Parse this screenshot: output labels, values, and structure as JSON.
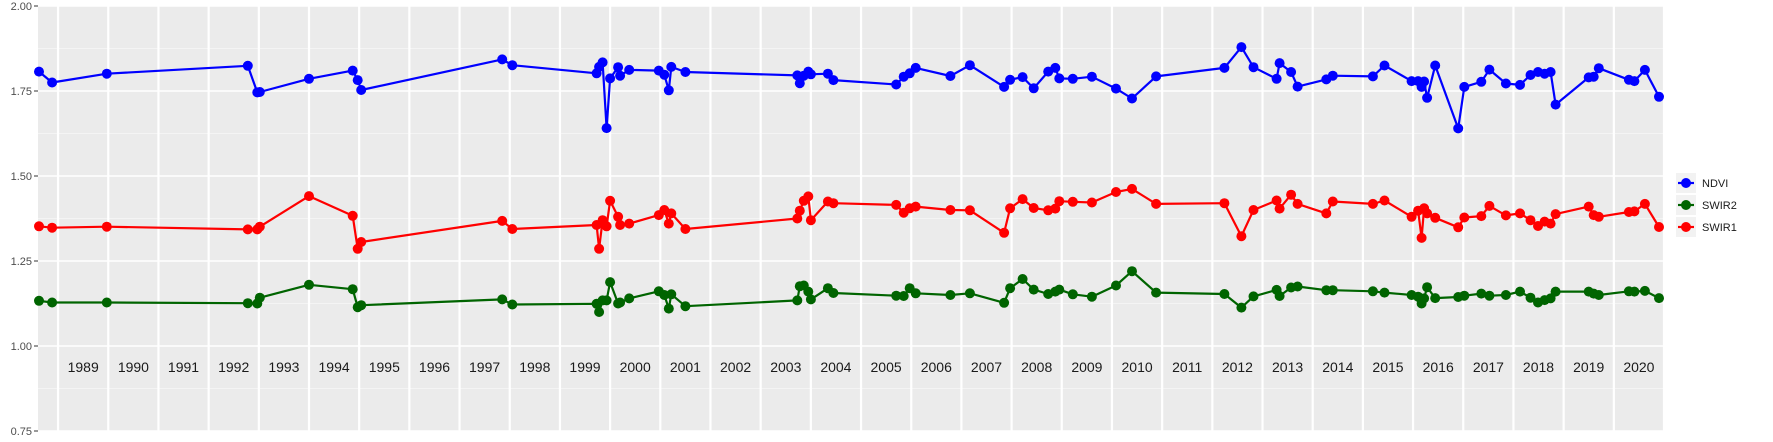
{
  "chart_data": {
    "type": "line",
    "title": "",
    "xlabel": "",
    "ylabel": "",
    "ylim": [
      0.75,
      2.0
    ],
    "xlim": [
      1988.6,
      2021.0
    ],
    "y_ticks": [
      "0.75",
      "1.00",
      "1.25",
      "1.50",
      "1.75",
      "2.00"
    ],
    "y_tick_values": [
      0.75,
      1.0,
      1.25,
      1.5,
      1.75,
      2.0
    ],
    "years": [
      "1989",
      "1990",
      "1991",
      "1992",
      "1993",
      "1994",
      "1995",
      "1996",
      "1997",
      "1998",
      "1999",
      "2000",
      "2001",
      "2002",
      "2003",
      "2004",
      "2005",
      "2006",
      "2007",
      "2008",
      "2009",
      "2010",
      "2011",
      "2012",
      "2013",
      "2014",
      "2015",
      "2016",
      "2017",
      "2018",
      "2019",
      "2020"
    ],
    "year_values": [
      1989,
      1990,
      1991,
      1992,
      1993,
      1994,
      1995,
      1996,
      1997,
      1998,
      1999,
      2000,
      2001,
      2002,
      2003,
      2004,
      2005,
      2006,
      2007,
      2008,
      2009,
      2010,
      2011,
      2012,
      2013,
      2014,
      2015,
      2016,
      2017,
      2018,
      2019,
      2020
    ],
    "background": "#ebebeb",
    "grid": true,
    "legend_position": "right",
    "legend": [
      {
        "name": "NDVI",
        "color": "#0000ff"
      },
      {
        "name": "SWIR2",
        "color": "#006400"
      },
      {
        "name": "SWIR1",
        "color": "#ff0000"
      }
    ],
    "x": [
      1988.62,
      1988.88,
      1989.97,
      1992.78,
      1992.97,
      1993.02,
      1994.0,
      1994.87,
      1994.97,
      1995.04,
      1997.85,
      1998.05,
      1999.73,
      1999.78,
      1999.85,
      1999.93,
      2000.0,
      2000.16,
      2000.2,
      2000.38,
      2000.97,
      2001.08,
      2001.17,
      2001.22,
      2001.5,
      2003.73,
      2003.78,
      2003.86,
      2003.95,
      2004.0,
      2004.34,
      2004.45,
      2005.7,
      2005.85,
      2005.97,
      2006.09,
      2006.78,
      2007.17,
      2007.85,
      2007.97,
      2008.22,
      2008.44,
      2008.73,
      2008.87,
      2008.95,
      2009.22,
      2009.6,
      2010.08,
      2010.4,
      2010.88,
      2012.24,
      2012.58,
      2012.82,
      2013.28,
      2013.34,
      2013.57,
      2013.7,
      2014.27,
      2014.4,
      2015.2,
      2015.43,
      2015.97,
      2016.1,
      2016.17,
      2016.22,
      2016.28,
      2016.44,
      2016.9,
      2017.02,
      2017.36,
      2017.52,
      2017.85,
      2018.13,
      2018.34,
      2018.49,
      2018.62,
      2018.74,
      2018.84,
      2019.5,
      2019.6,
      2019.7,
      2020.3,
      2020.41,
      2020.62,
      2020.9
    ],
    "series": [
      {
        "name": "NDVI",
        "color": "#0000ff",
        "values": [
          1.807,
          1.775,
          1.801,
          1.824,
          1.746,
          1.747,
          1.786,
          1.81,
          1.782,
          1.753,
          1.843,
          1.826,
          1.802,
          1.821,
          1.834,
          1.641,
          1.787,
          1.82,
          1.795,
          1.812,
          1.81,
          1.798,
          1.752,
          1.821,
          1.806,
          1.796,
          1.773,
          1.795,
          1.807,
          1.799,
          1.801,
          1.782,
          1.769,
          1.792,
          1.802,
          1.818,
          1.794,
          1.826,
          1.762,
          1.783,
          1.791,
          1.758,
          1.807,
          1.818,
          1.787,
          1.786,
          1.792,
          1.757,
          1.728,
          1.793,
          1.818,
          1.879,
          1.82,
          1.786,
          1.832,
          1.806,
          1.763,
          1.784,
          1.795,
          1.793,
          1.825,
          1.779,
          1.779,
          1.762,
          1.778,
          1.73,
          1.825,
          1.64,
          1.762,
          1.777,
          1.813,
          1.772,
          1.768,
          1.797,
          1.806,
          1.801,
          1.806,
          1.71,
          1.79,
          1.792,
          1.817,
          1.783,
          1.779,
          1.812,
          1.733
        ]
      },
      {
        "name": "SWIR1",
        "color": "#ff0000",
        "values": [
          1.352,
          1.348,
          1.351,
          1.343,
          1.343,
          1.351,
          1.441,
          1.383,
          1.286,
          1.306,
          1.368,
          1.344,
          1.356,
          1.286,
          1.37,
          1.352,
          1.427,
          1.38,
          1.356,
          1.36,
          1.385,
          1.4,
          1.36,
          1.39,
          1.344,
          1.375,
          1.398,
          1.427,
          1.44,
          1.37,
          1.425,
          1.42,
          1.415,
          1.392,
          1.405,
          1.41,
          1.4,
          1.399,
          1.333,
          1.405,
          1.432,
          1.406,
          1.399,
          1.404,
          1.426,
          1.424,
          1.422,
          1.453,
          1.462,
          1.418,
          1.42,
          1.323,
          1.4,
          1.428,
          1.404,
          1.445,
          1.418,
          1.39,
          1.425,
          1.418,
          1.428,
          1.38,
          1.398,
          1.318,
          1.405,
          1.39,
          1.377,
          1.349,
          1.378,
          1.382,
          1.412,
          1.384,
          1.39,
          1.37,
          1.353,
          1.366,
          1.36,
          1.388,
          1.41,
          1.385,
          1.38,
          1.394,
          1.396,
          1.418,
          1.35
        ]
      },
      {
        "name": "SWIR2",
        "color": "#006400",
        "values": [
          1.133,
          1.128,
          1.128,
          1.126,
          1.125,
          1.142,
          1.18,
          1.167,
          1.114,
          1.12,
          1.137,
          1.122,
          1.124,
          1.1,
          1.134,
          1.134,
          1.188,
          1.125,
          1.128,
          1.14,
          1.161,
          1.15,
          1.11,
          1.152,
          1.117,
          1.134,
          1.176,
          1.178,
          1.16,
          1.137,
          1.17,
          1.156,
          1.148,
          1.147,
          1.17,
          1.155,
          1.15,
          1.155,
          1.127,
          1.17,
          1.197,
          1.166,
          1.153,
          1.16,
          1.166,
          1.152,
          1.145,
          1.178,
          1.22,
          1.157,
          1.153,
          1.113,
          1.146,
          1.165,
          1.147,
          1.172,
          1.175,
          1.164,
          1.164,
          1.161,
          1.157,
          1.15,
          1.145,
          1.125,
          1.14,
          1.173,
          1.141,
          1.144,
          1.148,
          1.154,
          1.148,
          1.15,
          1.16,
          1.142,
          1.128,
          1.135,
          1.14,
          1.16,
          1.16,
          1.154,
          1.15,
          1.161,
          1.16,
          1.162,
          1.141
        ]
      }
    ]
  }
}
